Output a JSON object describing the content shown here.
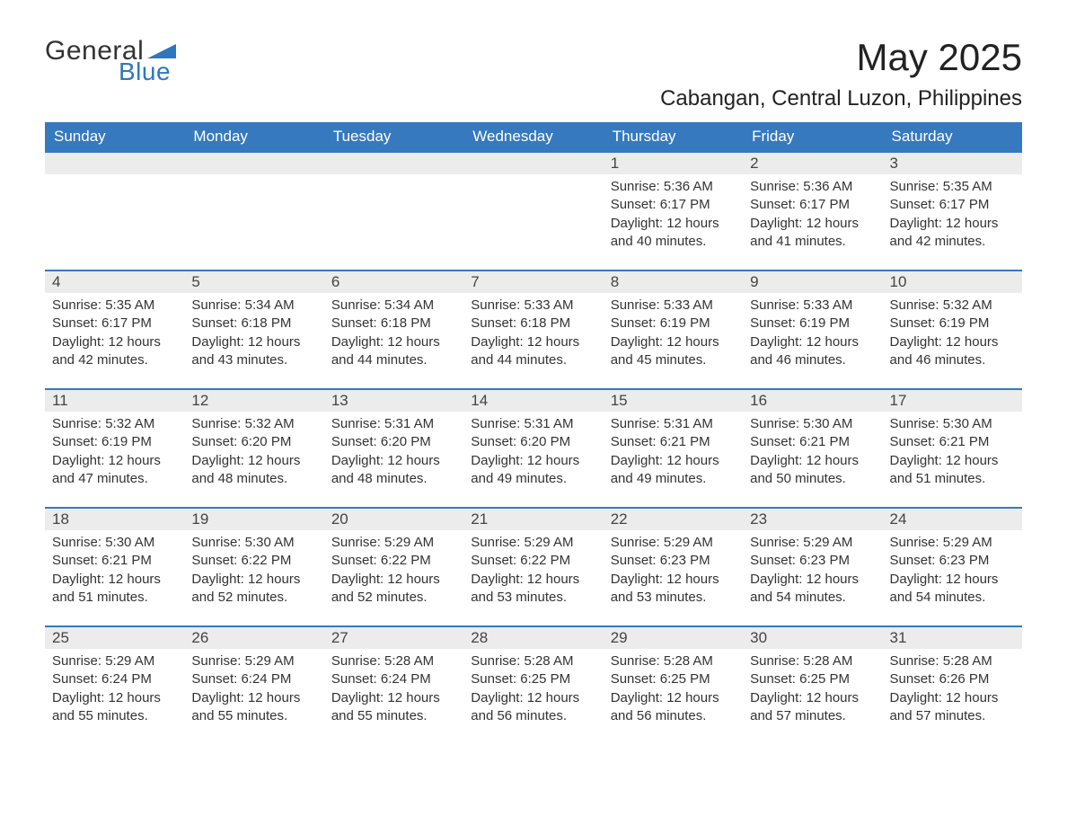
{
  "logo": {
    "text1": "General",
    "text2": "Blue",
    "tri_color": "#2f77bc",
    "text1_color": "#333333"
  },
  "title": "May 2025",
  "location": "Cabangan, Central Luzon, Philippines",
  "colors": {
    "header_bg": "#3679bf",
    "header_text": "#ffffff",
    "daynum_bg": "#ececec",
    "row_border": "#3679bf",
    "body_text": "#333333"
  },
  "weekdays": [
    "Sunday",
    "Monday",
    "Tuesday",
    "Wednesday",
    "Thursday",
    "Friday",
    "Saturday"
  ],
  "weeks": [
    [
      null,
      null,
      null,
      null,
      {
        "n": "1",
        "sunrise": "Sunrise: 5:36 AM",
        "sunset": "Sunset: 6:17 PM",
        "daylight1": "Daylight: 12 hours",
        "daylight2": "and 40 minutes."
      },
      {
        "n": "2",
        "sunrise": "Sunrise: 5:36 AM",
        "sunset": "Sunset: 6:17 PM",
        "daylight1": "Daylight: 12 hours",
        "daylight2": "and 41 minutes."
      },
      {
        "n": "3",
        "sunrise": "Sunrise: 5:35 AM",
        "sunset": "Sunset: 6:17 PM",
        "daylight1": "Daylight: 12 hours",
        "daylight2": "and 42 minutes."
      }
    ],
    [
      {
        "n": "4",
        "sunrise": "Sunrise: 5:35 AM",
        "sunset": "Sunset: 6:17 PM",
        "daylight1": "Daylight: 12 hours",
        "daylight2": "and 42 minutes."
      },
      {
        "n": "5",
        "sunrise": "Sunrise: 5:34 AM",
        "sunset": "Sunset: 6:18 PM",
        "daylight1": "Daylight: 12 hours",
        "daylight2": "and 43 minutes."
      },
      {
        "n": "6",
        "sunrise": "Sunrise: 5:34 AM",
        "sunset": "Sunset: 6:18 PM",
        "daylight1": "Daylight: 12 hours",
        "daylight2": "and 44 minutes."
      },
      {
        "n": "7",
        "sunrise": "Sunrise: 5:33 AM",
        "sunset": "Sunset: 6:18 PM",
        "daylight1": "Daylight: 12 hours",
        "daylight2": "and 44 minutes."
      },
      {
        "n": "8",
        "sunrise": "Sunrise: 5:33 AM",
        "sunset": "Sunset: 6:19 PM",
        "daylight1": "Daylight: 12 hours",
        "daylight2": "and 45 minutes."
      },
      {
        "n": "9",
        "sunrise": "Sunrise: 5:33 AM",
        "sunset": "Sunset: 6:19 PM",
        "daylight1": "Daylight: 12 hours",
        "daylight2": "and 46 minutes."
      },
      {
        "n": "10",
        "sunrise": "Sunrise: 5:32 AM",
        "sunset": "Sunset: 6:19 PM",
        "daylight1": "Daylight: 12 hours",
        "daylight2": "and 46 minutes."
      }
    ],
    [
      {
        "n": "11",
        "sunrise": "Sunrise: 5:32 AM",
        "sunset": "Sunset: 6:19 PM",
        "daylight1": "Daylight: 12 hours",
        "daylight2": "and 47 minutes."
      },
      {
        "n": "12",
        "sunrise": "Sunrise: 5:32 AM",
        "sunset": "Sunset: 6:20 PM",
        "daylight1": "Daylight: 12 hours",
        "daylight2": "and 48 minutes."
      },
      {
        "n": "13",
        "sunrise": "Sunrise: 5:31 AM",
        "sunset": "Sunset: 6:20 PM",
        "daylight1": "Daylight: 12 hours",
        "daylight2": "and 48 minutes."
      },
      {
        "n": "14",
        "sunrise": "Sunrise: 5:31 AM",
        "sunset": "Sunset: 6:20 PM",
        "daylight1": "Daylight: 12 hours",
        "daylight2": "and 49 minutes."
      },
      {
        "n": "15",
        "sunrise": "Sunrise: 5:31 AM",
        "sunset": "Sunset: 6:21 PM",
        "daylight1": "Daylight: 12 hours",
        "daylight2": "and 49 minutes."
      },
      {
        "n": "16",
        "sunrise": "Sunrise: 5:30 AM",
        "sunset": "Sunset: 6:21 PM",
        "daylight1": "Daylight: 12 hours",
        "daylight2": "and 50 minutes."
      },
      {
        "n": "17",
        "sunrise": "Sunrise: 5:30 AM",
        "sunset": "Sunset: 6:21 PM",
        "daylight1": "Daylight: 12 hours",
        "daylight2": "and 51 minutes."
      }
    ],
    [
      {
        "n": "18",
        "sunrise": "Sunrise: 5:30 AM",
        "sunset": "Sunset: 6:21 PM",
        "daylight1": "Daylight: 12 hours",
        "daylight2": "and 51 minutes."
      },
      {
        "n": "19",
        "sunrise": "Sunrise: 5:30 AM",
        "sunset": "Sunset: 6:22 PM",
        "daylight1": "Daylight: 12 hours",
        "daylight2": "and 52 minutes."
      },
      {
        "n": "20",
        "sunrise": "Sunrise: 5:29 AM",
        "sunset": "Sunset: 6:22 PM",
        "daylight1": "Daylight: 12 hours",
        "daylight2": "and 52 minutes."
      },
      {
        "n": "21",
        "sunrise": "Sunrise: 5:29 AM",
        "sunset": "Sunset: 6:22 PM",
        "daylight1": "Daylight: 12 hours",
        "daylight2": "and 53 minutes."
      },
      {
        "n": "22",
        "sunrise": "Sunrise: 5:29 AM",
        "sunset": "Sunset: 6:23 PM",
        "daylight1": "Daylight: 12 hours",
        "daylight2": "and 53 minutes."
      },
      {
        "n": "23",
        "sunrise": "Sunrise: 5:29 AM",
        "sunset": "Sunset: 6:23 PM",
        "daylight1": "Daylight: 12 hours",
        "daylight2": "and 54 minutes."
      },
      {
        "n": "24",
        "sunrise": "Sunrise: 5:29 AM",
        "sunset": "Sunset: 6:23 PM",
        "daylight1": "Daylight: 12 hours",
        "daylight2": "and 54 minutes."
      }
    ],
    [
      {
        "n": "25",
        "sunrise": "Sunrise: 5:29 AM",
        "sunset": "Sunset: 6:24 PM",
        "daylight1": "Daylight: 12 hours",
        "daylight2": "and 55 minutes."
      },
      {
        "n": "26",
        "sunrise": "Sunrise: 5:29 AM",
        "sunset": "Sunset: 6:24 PM",
        "daylight1": "Daylight: 12 hours",
        "daylight2": "and 55 minutes."
      },
      {
        "n": "27",
        "sunrise": "Sunrise: 5:28 AM",
        "sunset": "Sunset: 6:24 PM",
        "daylight1": "Daylight: 12 hours",
        "daylight2": "and 55 minutes."
      },
      {
        "n": "28",
        "sunrise": "Sunrise: 5:28 AM",
        "sunset": "Sunset: 6:25 PM",
        "daylight1": "Daylight: 12 hours",
        "daylight2": "and 56 minutes."
      },
      {
        "n": "29",
        "sunrise": "Sunrise: 5:28 AM",
        "sunset": "Sunset: 6:25 PM",
        "daylight1": "Daylight: 12 hours",
        "daylight2": "and 56 minutes."
      },
      {
        "n": "30",
        "sunrise": "Sunrise: 5:28 AM",
        "sunset": "Sunset: 6:25 PM",
        "daylight1": "Daylight: 12 hours",
        "daylight2": "and 57 minutes."
      },
      {
        "n": "31",
        "sunrise": "Sunrise: 5:28 AM",
        "sunset": "Sunset: 6:26 PM",
        "daylight1": "Daylight: 12 hours",
        "daylight2": "and 57 minutes."
      }
    ]
  ]
}
